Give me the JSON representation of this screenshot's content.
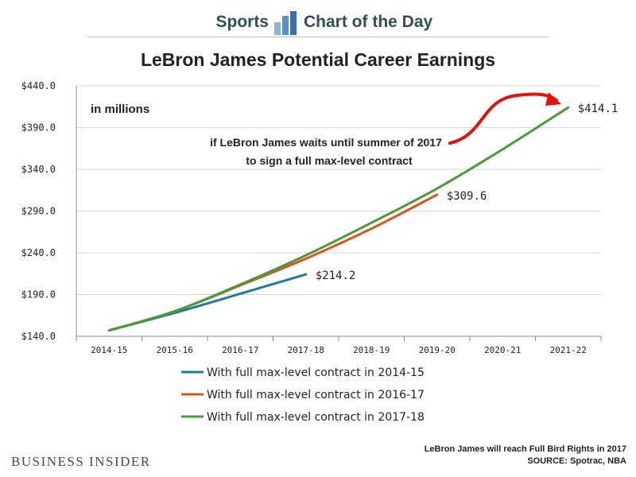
{
  "header": {
    "left": "Sports",
    "right": "Chart of the Day",
    "icon": "bar-chart-icon"
  },
  "title": "LeBron James Potential Career Earnings",
  "footer": {
    "logo": "BUSINESS INSIDER",
    "note_line1": "LeBron James will reach Full Bird Rights in 2017",
    "note_line2": "SOURCE: Spotrac, NBA"
  },
  "chart_data": {
    "type": "line",
    "title": "LeBron James Potential Career Earnings",
    "unit_note": "in millions",
    "categories": [
      "2014-15",
      "2015-16",
      "2016-17",
      "2017-18",
      "2018-19",
      "2019-20",
      "2020-21",
      "2021-22"
    ],
    "ylim": [
      140,
      440
    ],
    "yticks": [
      140,
      190,
      240,
      290,
      340,
      390,
      440
    ],
    "ytick_labels": [
      "$140.0",
      "$190.0",
      "$240.0",
      "$290.0",
      "$340.0",
      "$390.0",
      "$440.0"
    ],
    "grid": true,
    "legend_position": "bottom",
    "series": [
      {
        "name": "With full max-level contract in 2014-15",
        "color": "#1f7a9a",
        "values": [
          147,
          168,
          191,
          214.2,
          null,
          null,
          null,
          null
        ],
        "end_label": "$214.2"
      },
      {
        "name": "With full max-level contract in 2016-17",
        "color": "#d9531e",
        "values": [
          147,
          170,
          201,
          233,
          269,
          309.6,
          null,
          null
        ],
        "end_label": "$309.6"
      },
      {
        "name": "With full max-level contract in 2017-18",
        "color": "#4a9a3a",
        "values": [
          147,
          170,
          202,
          237,
          276,
          317,
          364,
          414.1
        ],
        "end_label": "$414.1"
      }
    ],
    "annotation": {
      "line1": "if LeBron James waits until summer of 2017",
      "line2": "to sign a full max-level contract",
      "arrow_color": "#e3120b"
    }
  }
}
